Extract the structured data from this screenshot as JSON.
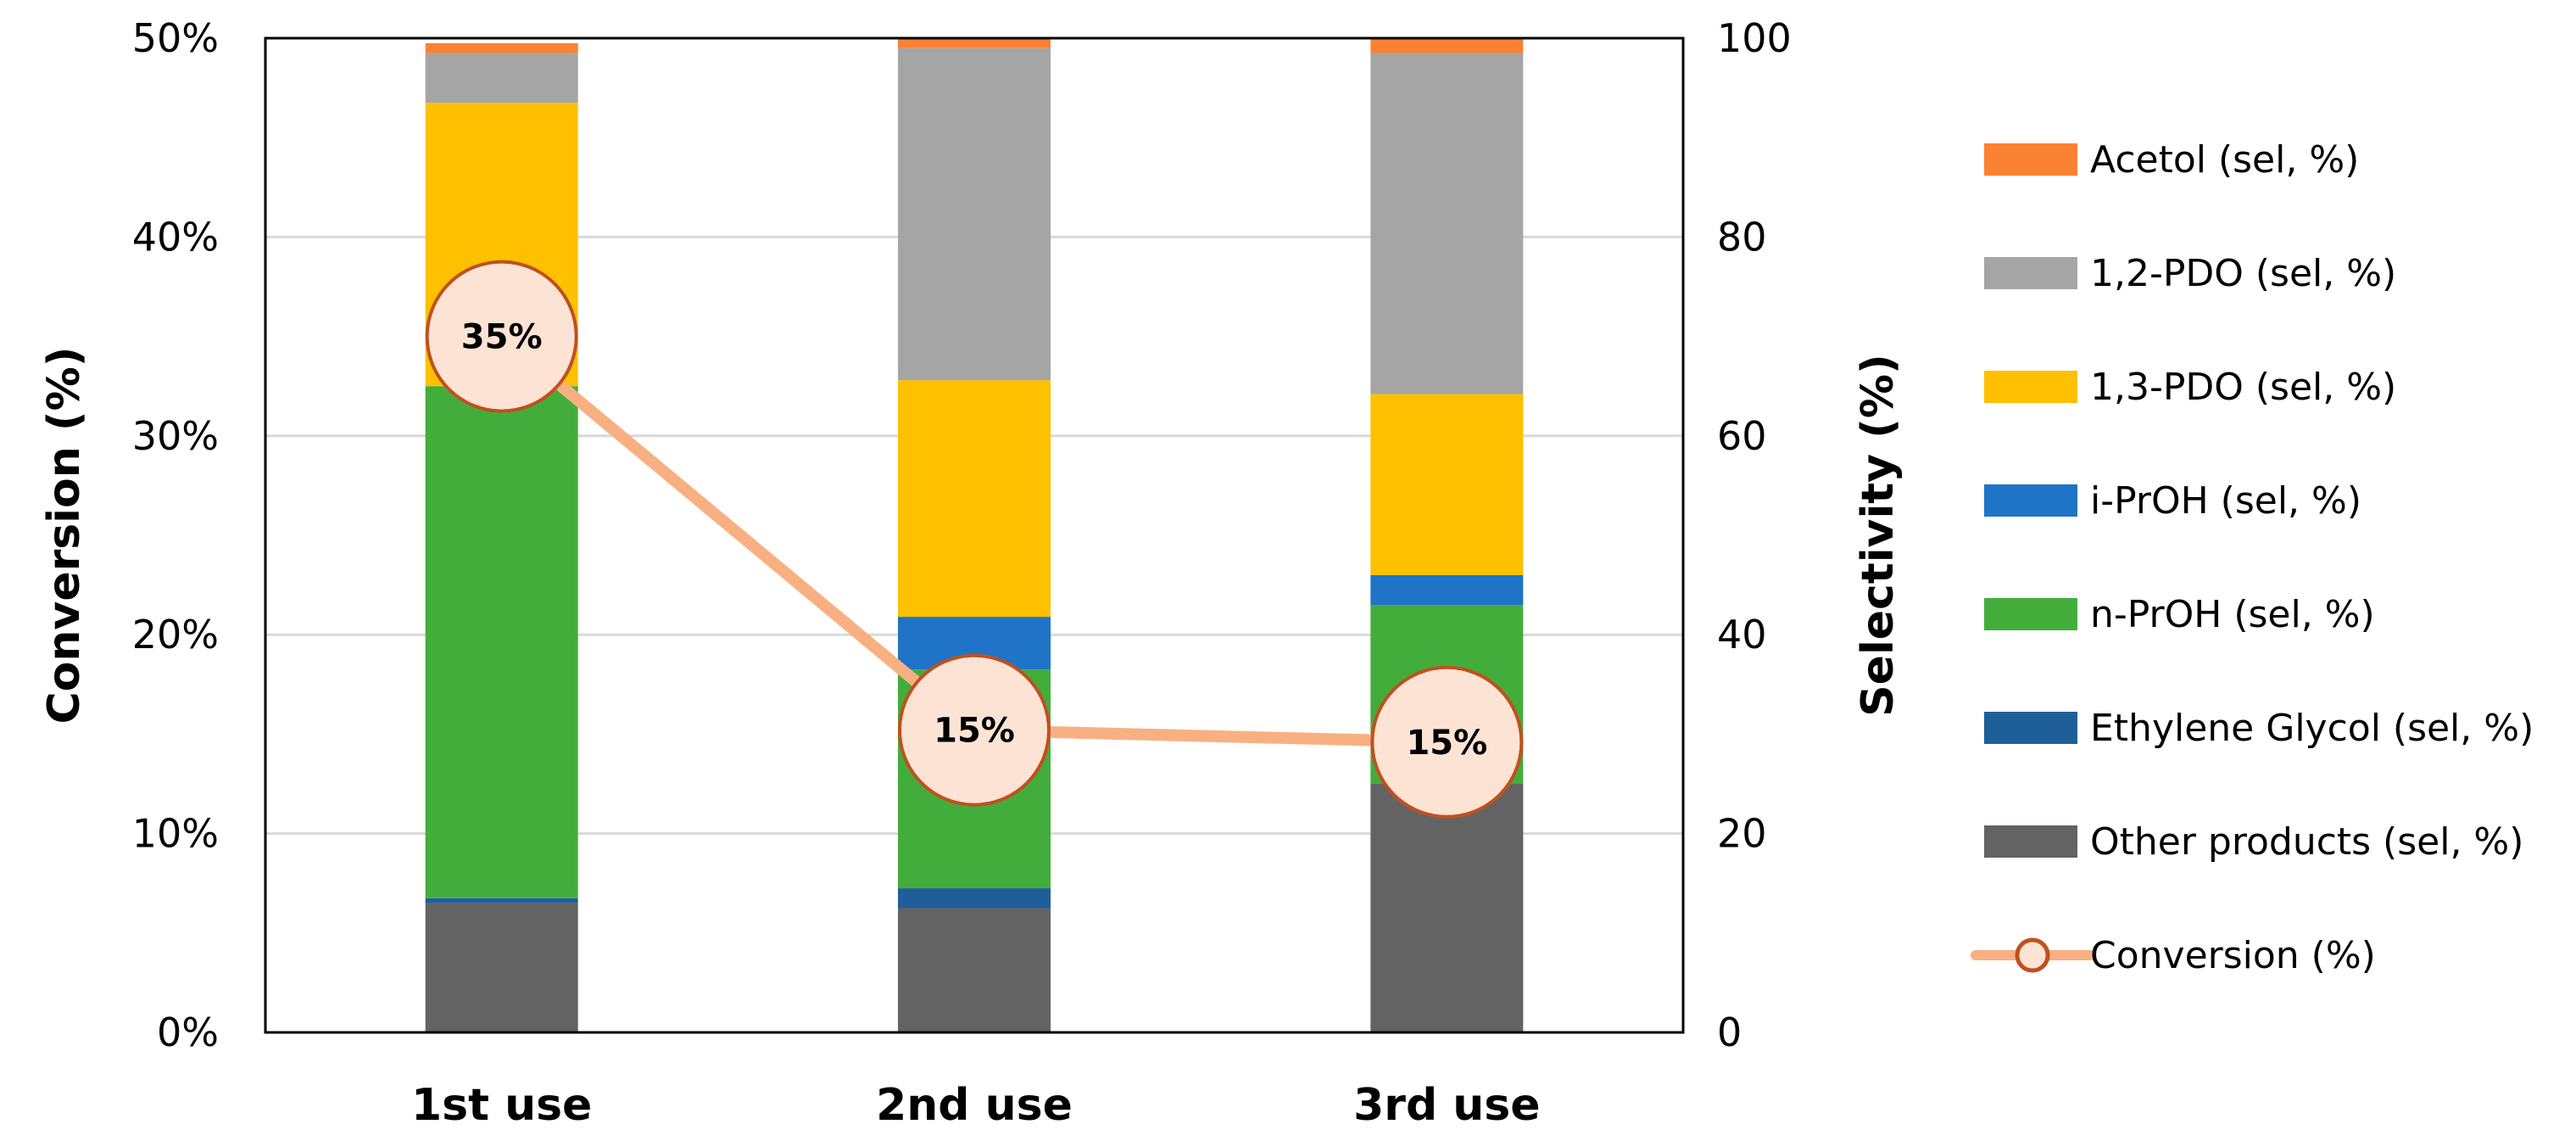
{
  "chart_data": {
    "type": "bar",
    "stacked": true,
    "categories": [
      "1st use",
      "2nd use",
      "3rd use"
    ],
    "left_axis": {
      "label": "Conversion (%)",
      "ylim": [
        0,
        50
      ],
      "ticks": [
        "0%",
        "10%",
        "20%",
        "30%",
        "40%",
        "50%"
      ]
    },
    "right_axis": {
      "label": "Selectivity (%)",
      "ylim": [
        0,
        100
      ],
      "ticks": [
        "0",
        "20",
        "40",
        "60",
        "80",
        "100"
      ]
    },
    "grid": true,
    "legend_position": "right",
    "series": [
      {
        "name": "Other products (sel, %)",
        "color": "#636363",
        "values": [
          13,
          12.5,
          25
        ]
      },
      {
        "name": "Ethylene Glycol (sel, %)",
        "color": "#1f5f99",
        "values": [
          0.5,
          2,
          0
        ]
      },
      {
        "name": "n-PrOH (sel, %)",
        "color": "#43ad3c",
        "values": [
          51.5,
          22,
          18
        ]
      },
      {
        "name": "i-PrOH (sel, %)",
        "color": "#1f74c8",
        "values": [
          0,
          5.3,
          3
        ]
      },
      {
        "name": "1,3-PDO (sel, %)",
        "color": "#ffc000",
        "values": [
          28.5,
          23.8,
          18.2
        ]
      },
      {
        "name": "1,2-PDO (sel, %)",
        "color": "#a5a5a5",
        "values": [
          5,
          33.4,
          34.3
        ]
      },
      {
        "name": "Acetol (sel, %)",
        "color": "#fb8232",
        "values": [
          1,
          1,
          1.5
        ]
      }
    ],
    "line": {
      "name": "Conversion (%)",
      "color": "#f8b083",
      "marker_fill": "#fde3d4",
      "marker_stroke": "#c0501f",
      "values": [
        35,
        15.2,
        14.6
      ],
      "labels": [
        "35%",
        "15%",
        "15%"
      ]
    }
  }
}
